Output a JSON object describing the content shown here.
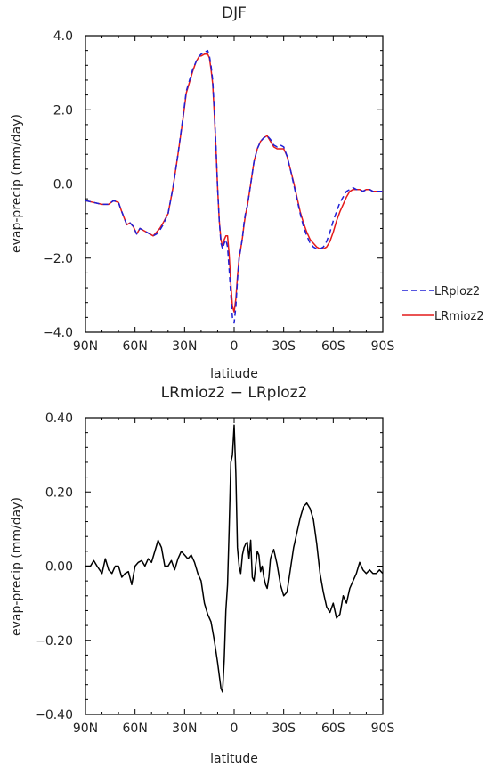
{
  "chart_data": [
    {
      "type": "line",
      "title": "DJF",
      "xlabel": "latitude",
      "ylabel": "evap-precip (mm/day)",
      "x_ticks": [
        {
          "value": 90,
          "label": "90N"
        },
        {
          "value": 60,
          "label": "60N"
        },
        {
          "value": 30,
          "label": "30N"
        },
        {
          "value": 0,
          "label": "0"
        },
        {
          "value": -30,
          "label": "30S"
        },
        {
          "value": -60,
          "label": "60S"
        },
        {
          "value": -90,
          "label": "90S"
        }
      ],
      "y_ticks": [
        {
          "value": 4,
          "label": "4.0"
        },
        {
          "value": 2,
          "label": "2.0"
        },
        {
          "value": 0,
          "label": "0.0"
        },
        {
          "value": -2,
          "label": "−2.0"
        },
        {
          "value": -4,
          "label": "−4.0"
        }
      ],
      "xlim": [
        90,
        -90
      ],
      "ylim": [
        -4,
        4
      ],
      "grid": false,
      "legend": "right",
      "series": [
        {
          "name": "LRploz2",
          "color": "#1f1fd6",
          "dash": "dashed",
          "x": [
            90,
            85,
            80,
            76,
            73,
            70,
            68,
            65,
            63,
            61,
            59,
            57,
            55,
            53,
            51,
            49,
            47,
            45,
            43,
            40,
            37,
            34,
            31,
            29,
            27,
            25,
            23,
            21,
            20,
            18,
            16,
            15,
            14,
            13,
            12,
            11,
            10,
            9,
            8,
            7,
            6,
            5,
            4,
            3,
            2,
            1,
            0,
            -1,
            -2,
            -3,
            -4,
            -5,
            -6,
            -7,
            -8,
            -10,
            -12,
            -14,
            -16,
            -18,
            -20,
            -22,
            -24,
            -26,
            -28,
            -30,
            -32,
            -34,
            -36,
            -38,
            -40,
            -42,
            -44,
            -46,
            -48,
            -50,
            -52,
            -54,
            -56,
            -58,
            -60,
            -62,
            -64,
            -66,
            -68,
            -70,
            -72,
            -74,
            -76,
            -78,
            -80,
            -82,
            -84,
            -86,
            -88,
            -90
          ],
          "y": [
            -0.45,
            -0.5,
            -0.55,
            -0.55,
            -0.45,
            -0.5,
            -0.75,
            -1.1,
            -1.05,
            -1.15,
            -1.35,
            -1.2,
            -1.25,
            -1.3,
            -1.35,
            -1.4,
            -1.35,
            -1.25,
            -1.1,
            -0.8,
            -0.1,
            0.8,
            1.8,
            2.5,
            2.8,
            3.1,
            3.3,
            3.45,
            3.5,
            3.55,
            3.6,
            3.45,
            3.2,
            2.8,
            2.0,
            1.0,
            -0.1,
            -1.0,
            -1.6,
            -1.75,
            -1.6,
            -1.5,
            -1.7,
            -2.3,
            -3.0,
            -3.6,
            -3.75,
            -3.3,
            -2.6,
            -2.0,
            -1.75,
            -1.45,
            -1.05,
            -0.75,
            -0.6,
            0.0,
            0.6,
            0.95,
            1.15,
            1.25,
            1.3,
            1.2,
            1.05,
            1.0,
            1.05,
            1.0,
            0.75,
            0.4,
            0.0,
            -0.4,
            -0.8,
            -1.15,
            -1.4,
            -1.6,
            -1.7,
            -1.75,
            -1.75,
            -1.7,
            -1.55,
            -1.3,
            -1.0,
            -0.75,
            -0.5,
            -0.35,
            -0.2,
            -0.15,
            -0.1,
            -0.15,
            -0.15,
            -0.2,
            -0.15,
            -0.15,
            -0.2,
            -0.2,
            -0.2,
            -0.2
          ]
        },
        {
          "name": "LRmioz2",
          "color": "#e41a1a",
          "dash": "solid",
          "x": [
            90,
            85,
            80,
            76,
            73,
            70,
            68,
            65,
            63,
            61,
            59,
            57,
            55,
            53,
            51,
            49,
            47,
            45,
            43,
            40,
            37,
            34,
            31,
            29,
            27,
            25,
            23,
            21,
            20,
            18,
            16,
            15,
            14,
            13,
            12,
            11,
            10,
            9,
            8,
            7,
            6,
            5,
            4,
            3,
            2,
            1,
            0,
            -1,
            -2,
            -3,
            -4,
            -5,
            -6,
            -7,
            -8,
            -10,
            -12,
            -14,
            -16,
            -18,
            -20,
            -22,
            -24,
            -26,
            -28,
            -30,
            -32,
            -34,
            -36,
            -38,
            -40,
            -42,
            -44,
            -46,
            -48,
            -50,
            -52,
            -54,
            -56,
            -58,
            -60,
            -62,
            -64,
            -66,
            -68,
            -70,
            -72,
            -74,
            -76,
            -78,
            -80,
            -82,
            -84,
            -86,
            -88,
            -90
          ],
          "y": [
            -0.45,
            -0.5,
            -0.55,
            -0.55,
            -0.45,
            -0.5,
            -0.75,
            -1.1,
            -1.05,
            -1.15,
            -1.35,
            -1.2,
            -1.25,
            -1.3,
            -1.35,
            -1.4,
            -1.3,
            -1.2,
            -1.05,
            -0.8,
            -0.1,
            0.8,
            1.75,
            2.45,
            2.75,
            3.05,
            3.3,
            3.45,
            3.45,
            3.5,
            3.5,
            3.4,
            3.1,
            2.7,
            1.9,
            0.95,
            -0.1,
            -1.0,
            -1.5,
            -1.7,
            -1.5,
            -1.4,
            -1.4,
            -1.9,
            -2.7,
            -3.3,
            -3.45,
            -3.1,
            -2.5,
            -2.0,
            -1.75,
            -1.45,
            -1.1,
            -0.8,
            -0.6,
            0.0,
            0.6,
            0.95,
            1.15,
            1.25,
            1.3,
            1.15,
            1.0,
            0.95,
            0.95,
            0.95,
            0.75,
            0.4,
            0.05,
            -0.35,
            -0.75,
            -1.05,
            -1.3,
            -1.5,
            -1.6,
            -1.7,
            -1.75,
            -1.75,
            -1.7,
            -1.55,
            -1.3,
            -1.0,
            -0.75,
            -0.55,
            -0.35,
            -0.2,
            -0.15,
            -0.15,
            -0.15,
            -0.2,
            -0.15,
            -0.15,
            -0.2,
            -0.2,
            -0.2,
            -0.2
          ]
        }
      ]
    },
    {
      "type": "line",
      "title": "LRmioz2 − LRploz2",
      "xlabel": "latitude",
      "ylabel": "evap-precip (mm/day)",
      "x_ticks": [
        {
          "value": 90,
          "label": "90N"
        },
        {
          "value": 60,
          "label": "60N"
        },
        {
          "value": 30,
          "label": "30N"
        },
        {
          "value": 0,
          "label": "0"
        },
        {
          "value": -30,
          "label": "30S"
        },
        {
          "value": -60,
          "label": "60S"
        },
        {
          "value": -90,
          "label": "90S"
        }
      ],
      "y_ticks": [
        {
          "value": 0.4,
          "label": "0.40"
        },
        {
          "value": 0.2,
          "label": "0.20"
        },
        {
          "value": 0,
          "label": "0.00"
        },
        {
          "value": -0.2,
          "label": "−0.20"
        },
        {
          "value": -0.4,
          "label": "−0.40"
        }
      ],
      "xlim": [
        90,
        -90
      ],
      "ylim": [
        -0.4,
        0.4
      ],
      "grid": false,
      "series": [
        {
          "color": "#000000",
          "dash": "solid",
          "x": [
            90,
            87,
            85,
            83,
            80,
            78,
            76,
            74,
            72,
            70,
            68,
            66,
            64,
            62,
            60,
            58,
            56,
            54,
            52,
            50,
            48,
            46,
            44,
            42,
            40,
            38,
            36,
            34,
            32,
            30,
            28,
            26,
            24,
            22,
            20,
            18,
            16,
            14,
            12,
            10,
            8,
            7,
            6,
            5,
            4,
            3,
            2,
            1,
            0,
            -1,
            -2,
            -3,
            -4,
            -5,
            -6,
            -7,
            -8,
            -9,
            -10,
            -11,
            -12,
            -13,
            -14,
            -15,
            -16,
            -17,
            -18,
            -19,
            -20,
            -21,
            -22,
            -23,
            -24,
            -26,
            -28,
            -30,
            -32,
            -34,
            -36,
            -38,
            -40,
            -42,
            -44,
            -46,
            -48,
            -50,
            -52,
            -54,
            -56,
            -58,
            -60,
            -62,
            -64,
            -66,
            -68,
            -70,
            -72,
            -74,
            -76,
            -78,
            -80,
            -82,
            -84,
            -86,
            -88,
            -90
          ],
          "y": [
            0.0,
            0.0,
            0.015,
            0.0,
            -0.02,
            0.02,
            -0.01,
            -0.02,
            0.0,
            0.0,
            -0.03,
            -0.02,
            -0.015,
            -0.05,
            0.0,
            0.01,
            0.015,
            0.0,
            0.02,
            0.01,
            0.04,
            0.07,
            0.05,
            0.0,
            0.0,
            0.015,
            -0.01,
            0.02,
            0.04,
            0.03,
            0.02,
            0.03,
            0.01,
            -0.02,
            -0.04,
            -0.1,
            -0.13,
            -0.15,
            -0.2,
            -0.26,
            -0.33,
            -0.34,
            -0.25,
            -0.12,
            -0.05,
            0.1,
            0.28,
            0.3,
            0.38,
            0.25,
            0.05,
            0.0,
            -0.02,
            0.03,
            0.05,
            0.06,
            0.065,
            0.02,
            0.07,
            -0.03,
            -0.04,
            0.0,
            0.04,
            0.03,
            -0.015,
            0.0,
            -0.03,
            -0.05,
            -0.06,
            -0.03,
            0.02,
            0.035,
            0.045,
            0.005,
            -0.05,
            -0.08,
            -0.07,
            -0.01,
            0.05,
            0.09,
            0.13,
            0.16,
            0.17,
            0.155,
            0.125,
            0.06,
            -0.02,
            -0.07,
            -0.11,
            -0.125,
            -0.1,
            -0.14,
            -0.13,
            -0.08,
            -0.1,
            -0.06,
            -0.04,
            -0.02,
            0.01,
            -0.01,
            -0.02,
            -0.01,
            -0.02,
            -0.02,
            -0.01,
            -0.02
          ]
        }
      ]
    }
  ]
}
